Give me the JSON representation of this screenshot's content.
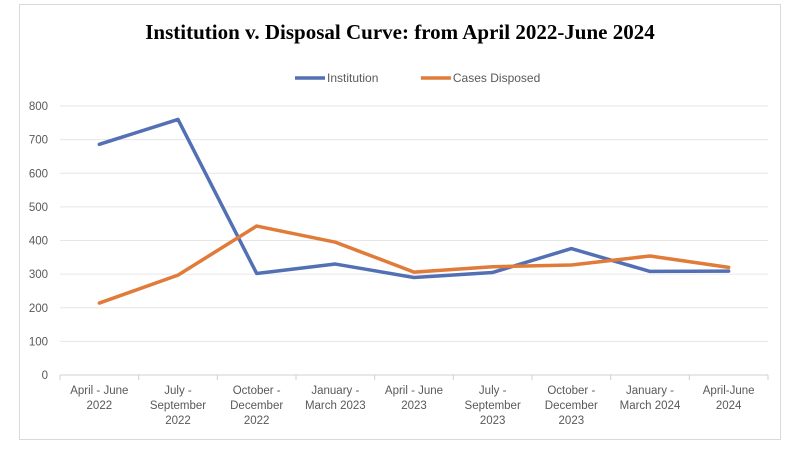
{
  "chart_data": {
    "type": "line",
    "title": "Institution v. Disposal Curve: from April 2022-June 2024",
    "categories": [
      [
        "April - June",
        "2022"
      ],
      [
        "July -",
        "September",
        "2022"
      ],
      [
        "October -",
        "December",
        "2022"
      ],
      [
        "January -",
        "March 2023"
      ],
      [
        "April - June",
        "2023"
      ],
      [
        "July -",
        "September",
        "2023"
      ],
      [
        "October -",
        "December",
        "2023"
      ],
      [
        "January -",
        "March 2024"
      ],
      [
        "April-June",
        "2024"
      ]
    ],
    "series": [
      {
        "name": "Institution",
        "color": "#5470b4",
        "values": [
          686,
          760,
          302,
          330,
          290,
          305,
          376,
          308,
          309
        ]
      },
      {
        "name": "Cases Disposed",
        "color": "#e07b39",
        "values": [
          214,
          297,
          443,
          395,
          306,
          322,
          327,
          354,
          320
        ]
      }
    ],
    "ylim": [
      0,
      800
    ],
    "yticks": [
      0,
      100,
      200,
      300,
      400,
      500,
      600,
      700,
      800
    ],
    "grid": true,
    "legend": "top-center",
    "xlabel": "",
    "ylabel": ""
  }
}
